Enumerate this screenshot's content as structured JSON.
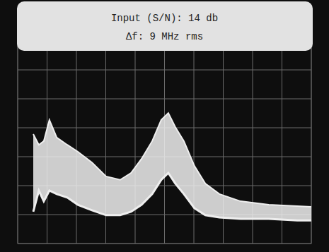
{
  "chart_data": {
    "type": "band",
    "title": "Input (S/N): 14 db",
    "subtitle": "Δf: 9 MHz rms",
    "x": [
      0.53,
      0.72,
      0.89,
      1.08,
      1.33,
      1.69,
      2.05,
      2.53,
      3.01,
      3.49,
      3.86,
      4.22,
      4.58,
      4.89,
      5.13,
      5.37,
      5.66,
      6.02,
      6.39,
      6.87,
      7.59,
      8.55,
      9.52,
      10
    ],
    "values": [
      3.78,
      3.41,
      3.54,
      4.27,
      3.66,
      3.41,
      3.17,
      2.8,
      2.32,
      2.2,
      2.44,
      2.93,
      3.54,
      4.27,
      4.51,
      4.02,
      3.54,
      2.68,
      2.07,
      1.71,
      1.46,
      1.34,
      1.29,
      1.27
    ],
    "lower": [
      1.1,
      1.83,
      1.46,
      1.83,
      1.71,
      1.59,
      1.34,
      1.15,
      0.98,
      0.98,
      1.1,
      1.34,
      1.71,
      2.2,
      2.44,
      2.07,
      1.71,
      1.22,
      0.98,
      0.9,
      0.85,
      0.85,
      0.8,
      0.8
    ],
    "color": "#eeeeee",
    "xlim": [
      0,
      10
    ],
    "ylim": [
      0,
      8
    ],
    "xticks": [
      0,
      1,
      2,
      3,
      4,
      5,
      6,
      7,
      8,
      9,
      10
    ],
    "yticks": [
      0,
      1,
      2,
      3,
      4,
      5,
      6,
      7,
      8
    ],
    "grid": true,
    "tick_labels": false
  }
}
